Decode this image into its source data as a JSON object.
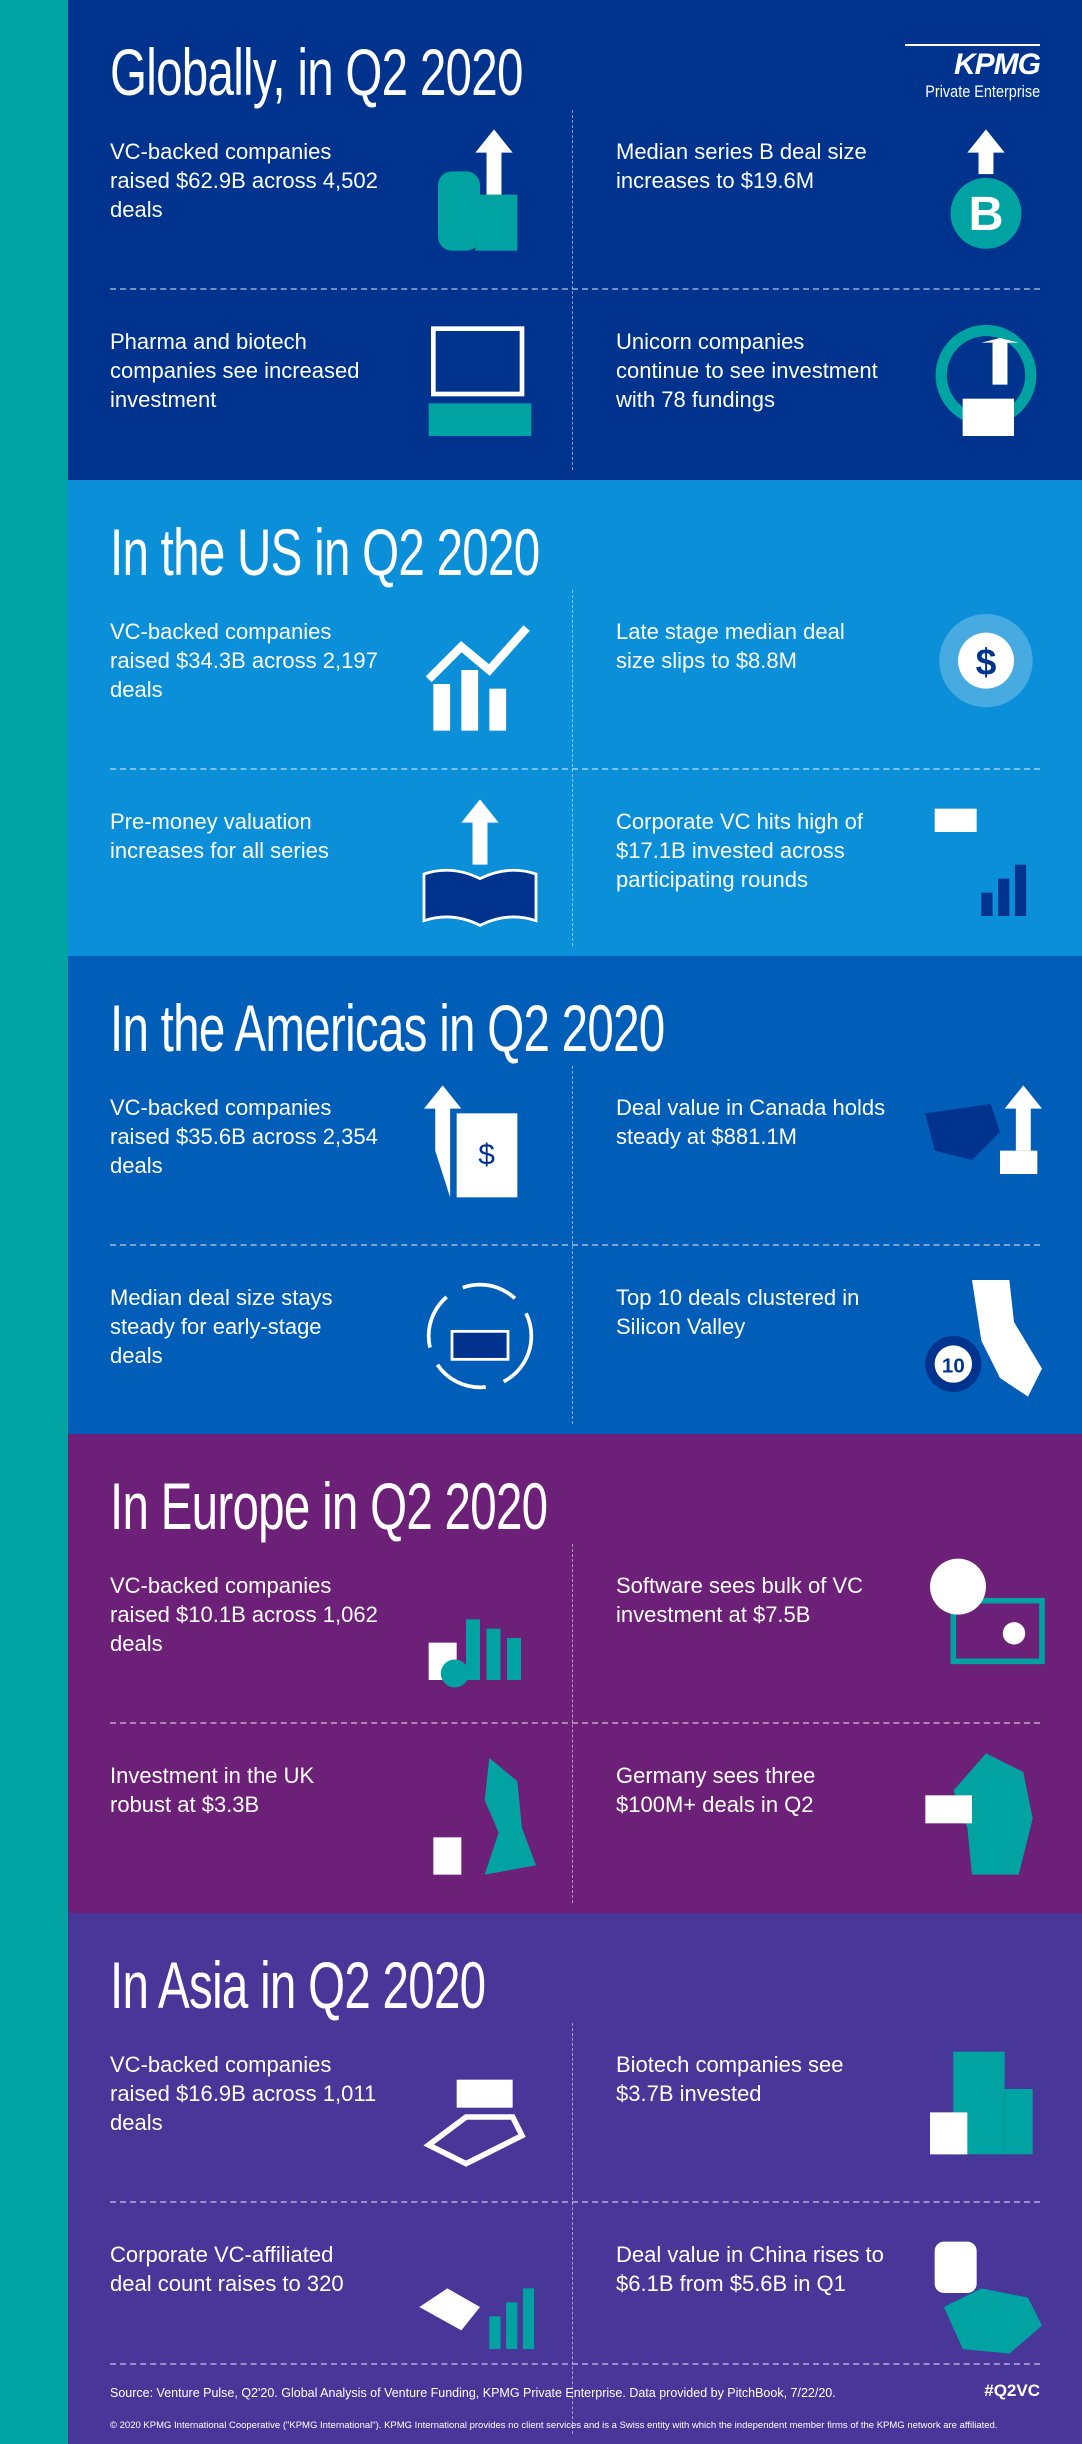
{
  "colors": {
    "teal": "#00a3a1",
    "global": "#00338d",
    "us": "#0a8fd8",
    "americas": "#005eb8",
    "europe": "#6d2077",
    "asia": "#483698"
  },
  "logo": {
    "brand": "KPMG",
    "sub": "Private Enterprise"
  },
  "sections": [
    {
      "title": "Globally, in Q2 2020",
      "items": [
        {
          "text": "VC-backed companies raised $62.9B across 4,502 deals",
          "icon": "building-arrow-up-icon"
        },
        {
          "text": "Median series B deal size increases to $19.6M",
          "icon": "letter-b-arrow-up-icon"
        },
        {
          "text": "Pharma and biotech companies see increased investment",
          "icon": "microscope-pill-chart-icon"
        },
        {
          "text": "Unicorn companies continue to see investment with 78 fundings",
          "icon": "money-stack-circle-arrow-icon"
        }
      ]
    },
    {
      "title": "In the US in Q2 2020",
      "items": [
        {
          "text": "VC-backed companies raised $34.3B across 2,197 deals",
          "icon": "bar-chart-trend-up-icon"
        },
        {
          "text": "Late stage median deal size slips to $8.8M",
          "icon": "dollar-donut-arrow-down-icon"
        },
        {
          "text": "Pre-money valuation increases for all series",
          "icon": "open-book-arrow-up-icon"
        },
        {
          "text": "Corporate VC hits high of $17.1B invested across participating rounds",
          "icon": "hand-money-bars-icon"
        }
      ]
    },
    {
      "title": "In the Americas in Q2 2020",
      "items": [
        {
          "text": "VC-backed companies raised $35.6B across 2,354 deals",
          "icon": "dollar-scroll-arrow-icon"
        },
        {
          "text": "Deal value in Canada holds steady at $881.1M",
          "icon": "canada-map-money-icon"
        },
        {
          "text": "Median deal size stays steady for early-stage deals",
          "icon": "money-cycle-icon"
        },
        {
          "text": "Top 10 deals clustered in Silicon Valley",
          "icon": "california-magnifier-icon"
        }
      ]
    },
    {
      "title": "In Europe in Q2 2020",
      "items": [
        {
          "text": "VC-backed companies raised $10.1B across 1,062 deals",
          "icon": "coins-bar-chart-down-icon"
        },
        {
          "text": "Software sees bulk of VC investment at $7.5B",
          "icon": "monitor-gears-icon"
        },
        {
          "text": "Investment in the UK robust at $3.3B",
          "icon": "uk-map-coins-icon"
        },
        {
          "text": "Germany sees three $100M+ deals in Q2",
          "icon": "germany-map-hand-money-icon"
        }
      ]
    },
    {
      "title": "In Asia in Q2 2020",
      "items": [
        {
          "text": "VC-backed companies raised $16.9B across 1,011 deals",
          "icon": "hand-money-arrows-icon"
        },
        {
          "text": "Biotech companies see $3.7B invested",
          "icon": "building-dna-moneybag-icon"
        },
        {
          "text": "Corporate VC-affiliated deal count raises to 320",
          "icon": "handshake-chart-icon"
        },
        {
          "text": "Deal value in China rises to $6.1B from $5.6B in Q1",
          "icon": "china-map-coins-icon"
        }
      ]
    }
  ],
  "footer": {
    "source": "Source: Venture Pulse, Q2'20. Global Analysis of Venture Funding, KPMG Private Enterprise. Data provided by PitchBook, 7/22/20.",
    "hashtag": "#Q2VC",
    "copyright": "© 2020 KPMG International Cooperative (\"KPMG International\"). KPMG International provides no client services and is a Swiss entity with which the independent member firms of the KPMG network are affiliated."
  }
}
